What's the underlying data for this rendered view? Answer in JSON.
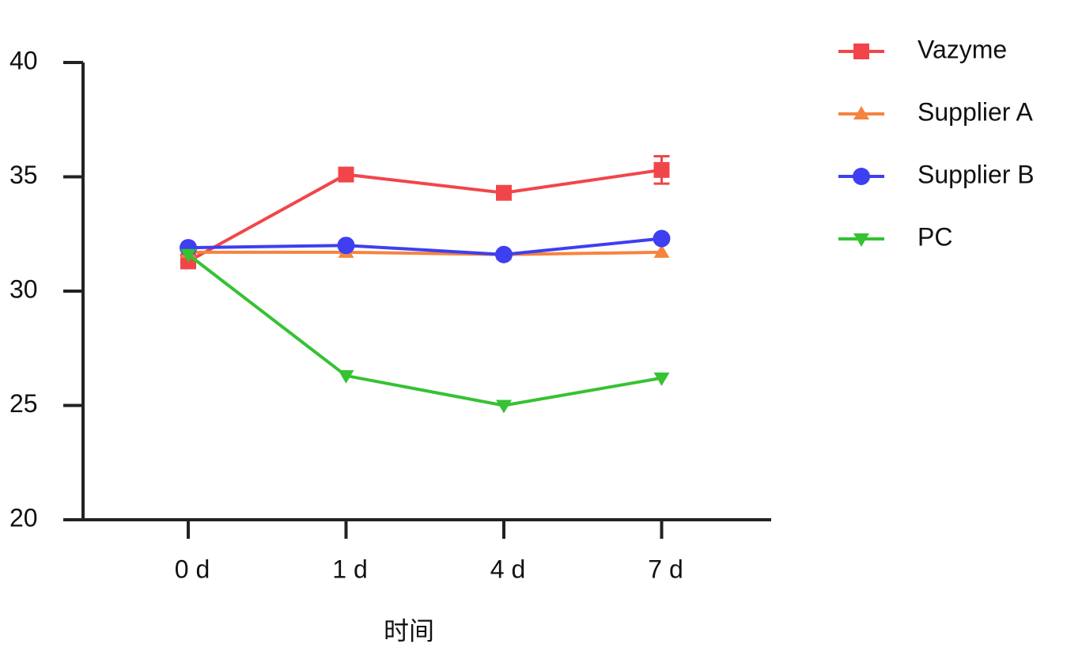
{
  "chart_data": {
    "type": "line",
    "x_label": "时间",
    "categories": [
      "0 d",
      "1 d",
      "4 d",
      "7 d"
    ],
    "ylim": [
      20,
      40
    ],
    "yticks": [
      20,
      25,
      30,
      35,
      40
    ],
    "legend": "right",
    "series": [
      {
        "name": "Vazyme",
        "color": "#f2454a",
        "marker": "square",
        "values": [
          31.3,
          35.1,
          34.3,
          35.3
        ],
        "errors": [
          null,
          null,
          null,
          0.6
        ]
      },
      {
        "name": "Supplier A",
        "color": "#f5843f",
        "marker": "triangle-up",
        "values": [
          31.7,
          31.7,
          31.6,
          31.7
        ]
      },
      {
        "name": "Supplier B",
        "color": "#3d3ff0",
        "marker": "circle",
        "values": [
          31.9,
          32.0,
          31.6,
          32.3
        ]
      },
      {
        "name": "PC",
        "color": "#35c233",
        "marker": "triangle-down",
        "values": [
          31.6,
          26.3,
          25.0,
          26.2
        ]
      }
    ]
  }
}
